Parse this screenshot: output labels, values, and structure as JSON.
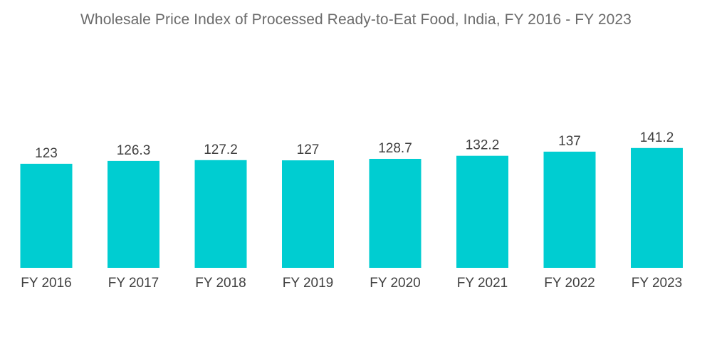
{
  "chart_data": {
    "type": "bar",
    "title": "Wholesale Price Index of Processed Ready-to-Eat Food, India, FY 2016 - FY 2023",
    "categories": [
      "FY 2016",
      "FY 2017",
      "FY 2018",
      "FY 2019",
      "FY 2020",
      "FY 2021",
      "FY 2022",
      "FY 2023"
    ],
    "values": [
      123,
      126.3,
      127.2,
      127,
      128.7,
      132.2,
      137,
      141.2
    ],
    "value_labels": [
      "123",
      "126.3",
      "127.2",
      "127",
      "128.7",
      "132.2",
      "137",
      "141.2"
    ],
    "xlabel": "",
    "ylabel": "",
    "grid": false,
    "legend": "none",
    "bar_color": "#00CDD1"
  }
}
